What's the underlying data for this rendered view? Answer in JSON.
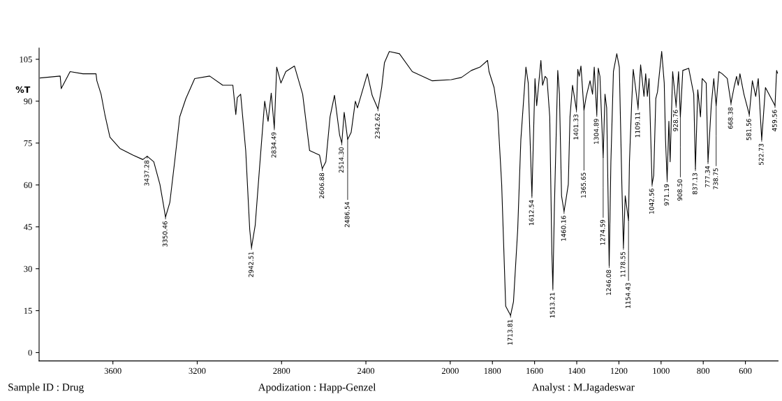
{
  "chart_data": {
    "type": "line",
    "ylabel": "%T",
    "x": [
      3945,
      3850,
      3845,
      3803,
      3742,
      3680,
      3676,
      3656,
      3638,
      3614,
      3567,
      3505,
      3458,
      3437.28,
      3406,
      3377,
      3362,
      3350.46,
      3330,
      3306,
      3283,
      3254,
      3212,
      3141,
      3079,
      3031,
      3017,
      3010,
      2994,
      2970,
      2951,
      2942.51,
      2925,
      2904,
      2880,
      2864,
      2849,
      2834.49,
      2823,
      2803,
      2780,
      2739,
      2700,
      2667,
      2620,
      2606.88,
      2590,
      2570,
      2549,
      2525,
      2514.3,
      2503,
      2486.54,
      2470,
      2450,
      2440,
      2393,
      2370,
      2342.62,
      2325,
      2312,
      2289,
      2241,
      2180,
      2085,
      1995,
      1947,
      1900,
      1859,
      1823,
      1816,
      1792,
      1775,
      1756,
      1737,
      1713.81,
      1700,
      1680,
      1665,
      1641,
      1630,
      1612.54,
      1598,
      1590,
      1570,
      1562,
      1550,
      1541,
      1528,
      1518,
      1513.21,
      1506,
      1490,
      1482,
      1472,
      1460.16,
      1450,
      1440,
      1432,
      1420,
      1401.33,
      1395,
      1388,
      1380,
      1365.65,
      1355,
      1337,
      1325,
      1317,
      1304.89,
      1298,
      1290,
      1274.59,
      1266,
      1258,
      1246.08,
      1238,
      1226,
      1210,
      1198,
      1186,
      1178.55,
      1170,
      1154.43,
      1150,
      1140,
      1132,
      1109.11,
      1097,
      1081,
      1073,
      1065,
      1057,
      1042.56,
      1035,
      1025,
      1017,
      997,
      985,
      979,
      971.19,
      963,
      957,
      945,
      928.76,
      917,
      908.5,
      897,
      869,
      845,
      837.13,
      826,
      813,
      805,
      786,
      777.34,
      762,
      750,
      738.75,
      726,
      710,
      686,
      668.38,
      654,
      642,
      634,
      626,
      607,
      581.56,
      567,
      551,
      539,
      522.73,
      505,
      459.56,
      452,
      447
    ],
    "values": [
      98.3,
      99,
      94.5,
      100.6,
      99.8,
      99.8,
      97.3,
      92.5,
      85.2,
      77.1,
      73.1,
      70.7,
      69.1,
      70.3,
      68.3,
      60.2,
      53.7,
      48.5,
      53.7,
      69,
      84.4,
      90.9,
      98.1,
      99,
      95.7,
      95.7,
      85.2,
      91.3,
      92.5,
      72.3,
      44,
      37.6,
      45.6,
      66.6,
      90,
      82.8,
      92.9,
      80.4,
      102.2,
      96.5,
      100.6,
      102.6,
      92.5,
      72.3,
      70.7,
      65.8,
      68.3,
      84.4,
      92.1,
      78,
      75,
      86,
      76.3,
      78.8,
      90,
      87.6,
      99.8,
      92,
      87.2,
      95,
      103.8,
      107.8,
      107,
      100.6,
      97.3,
      97.7,
      98.5,
      101,
      102.2,
      104.6,
      100.6,
      94.9,
      86,
      60.2,
      16.6,
      13.3,
      18.2,
      44,
      76.3,
      102.2,
      96.5,
      56.1,
      98.1,
      88.4,
      104.6,
      95.7,
      98.9,
      98.1,
      84.4,
      35.9,
      23,
      52,
      101,
      92.5,
      56.1,
      50.5,
      55.3,
      60.2,
      84.4,
      95.7,
      86.8,
      101.4,
      98.9,
      102.6,
      86.8,
      91.7,
      97.3,
      92.5,
      102.2,
      85.2,
      101.8,
      98.9,
      69.9,
      92.5,
      87.6,
      31.1,
      68.3,
      100.6,
      107,
      102.2,
      60.2,
      37.6,
      56.1,
      47.3,
      68.3,
      88.4,
      101.4,
      87.6,
      103,
      91.7,
      99.8,
      91.7,
      98.1,
      60.2,
      63.4,
      90.9,
      93.3,
      107.8,
      96.5,
      76.3,
      61.8,
      82.8,
      68.3,
      100.6,
      88.4,
      100.6,
      84.4,
      101,
      101.8,
      92.5,
      65.8,
      94.1,
      84.4,
      98.1,
      96.5,
      68.3,
      88.4,
      98.1,
      88.4,
      100.6,
      99.8,
      98.1,
      89.3,
      94.9,
      98.9,
      95.7,
      99.8,
      92.5,
      85.2,
      97.3,
      91.7,
      98.1,
      76.3,
      94.9,
      88.4,
      101,
      100
    ],
    "color": "#000000",
    "xlim": [
      3950,
      445
    ],
    "xticks": [
      3600,
      3200,
      2800,
      2400,
      2000,
      1800,
      1600,
      1400,
      1200,
      1000,
      800,
      600
    ],
    "ylim": [
      -3,
      109
    ],
    "yticks": [
      0,
      15,
      30,
      45,
      60,
      75,
      90,
      105
    ],
    "grid": false,
    "annotations": [
      {
        "text": "3437.28",
        "x": 3437.28,
        "y": 70.3
      },
      {
        "text": "3350.46",
        "x": 3350.46,
        "y": 48.5
      },
      {
        "text": "2942.51",
        "x": 2942.51,
        "y": 37.6
      },
      {
        "text": "2834.49",
        "x": 2834.49,
        "y": 80.4
      },
      {
        "text": "2606.88",
        "x": 2606.88,
        "y": 65.8
      },
      {
        "text": "2514.30",
        "x": 2514.3,
        "y": 75
      },
      {
        "text": "2486.54",
        "x": 2486.54,
        "y": 76.3
      },
      {
        "text": "2342.62",
        "x": 2342.62,
        "y": 87.2
      },
      {
        "text": "1713.81",
        "x": 1713.81,
        "y": 13.3
      },
      {
        "text": "1612.54",
        "x": 1612.54,
        "y": 56.1
      },
      {
        "text": "1513.21",
        "x": 1513.21,
        "y": 23
      },
      {
        "text": "1460.16",
        "x": 1460.16,
        "y": 50.5
      },
      {
        "text": "1401.33",
        "x": 1401.33,
        "y": 86.8
      },
      {
        "text": "1365.65",
        "x": 1365.65,
        "y": 86.8
      },
      {
        "text": "1304.89",
        "x": 1304.89,
        "y": 85.2
      },
      {
        "text": "1274.59",
        "x": 1274.59,
        "y": 69.9
      },
      {
        "text": "1246.08",
        "x": 1246.08,
        "y": 31.1
      },
      {
        "text": "1178.55",
        "x": 1178.55,
        "y": 37.6
      },
      {
        "text": "1154.43",
        "x": 1154.43,
        "y": 47.3
      },
      {
        "text": "1109.11",
        "x": 1109.11,
        "y": 87.6
      },
      {
        "text": "1042.56",
        "x": 1042.56,
        "y": 60.2
      },
      {
        "text": "971.19",
        "x": 971.19,
        "y": 61.8
      },
      {
        "text": "928.76",
        "x": 928.76,
        "y": 88.4
      },
      {
        "text": "908.50",
        "x": 908.5,
        "y": 84.4
      },
      {
        "text": "837.13",
        "x": 837.13,
        "y": 65.8
      },
      {
        "text": "777.34",
        "x": 777.34,
        "y": 68.3
      },
      {
        "text": "738.75",
        "x": 738.75,
        "y": 88.4
      },
      {
        "text": "668.38",
        "x": 668.38,
        "y": 89.3
      },
      {
        "text": "581.56",
        "x": 581.56,
        "y": 85.2
      },
      {
        "text": "522.73",
        "x": 522.73,
        "y": 76.3
      },
      {
        "text": "459.56",
        "x": 459.56,
        "y": 88.4
      },
      "Sample ID : Drug",
      "Apodization : Happ-Genzel",
      "Analyst : M.Jagadeswar"
    ]
  }
}
